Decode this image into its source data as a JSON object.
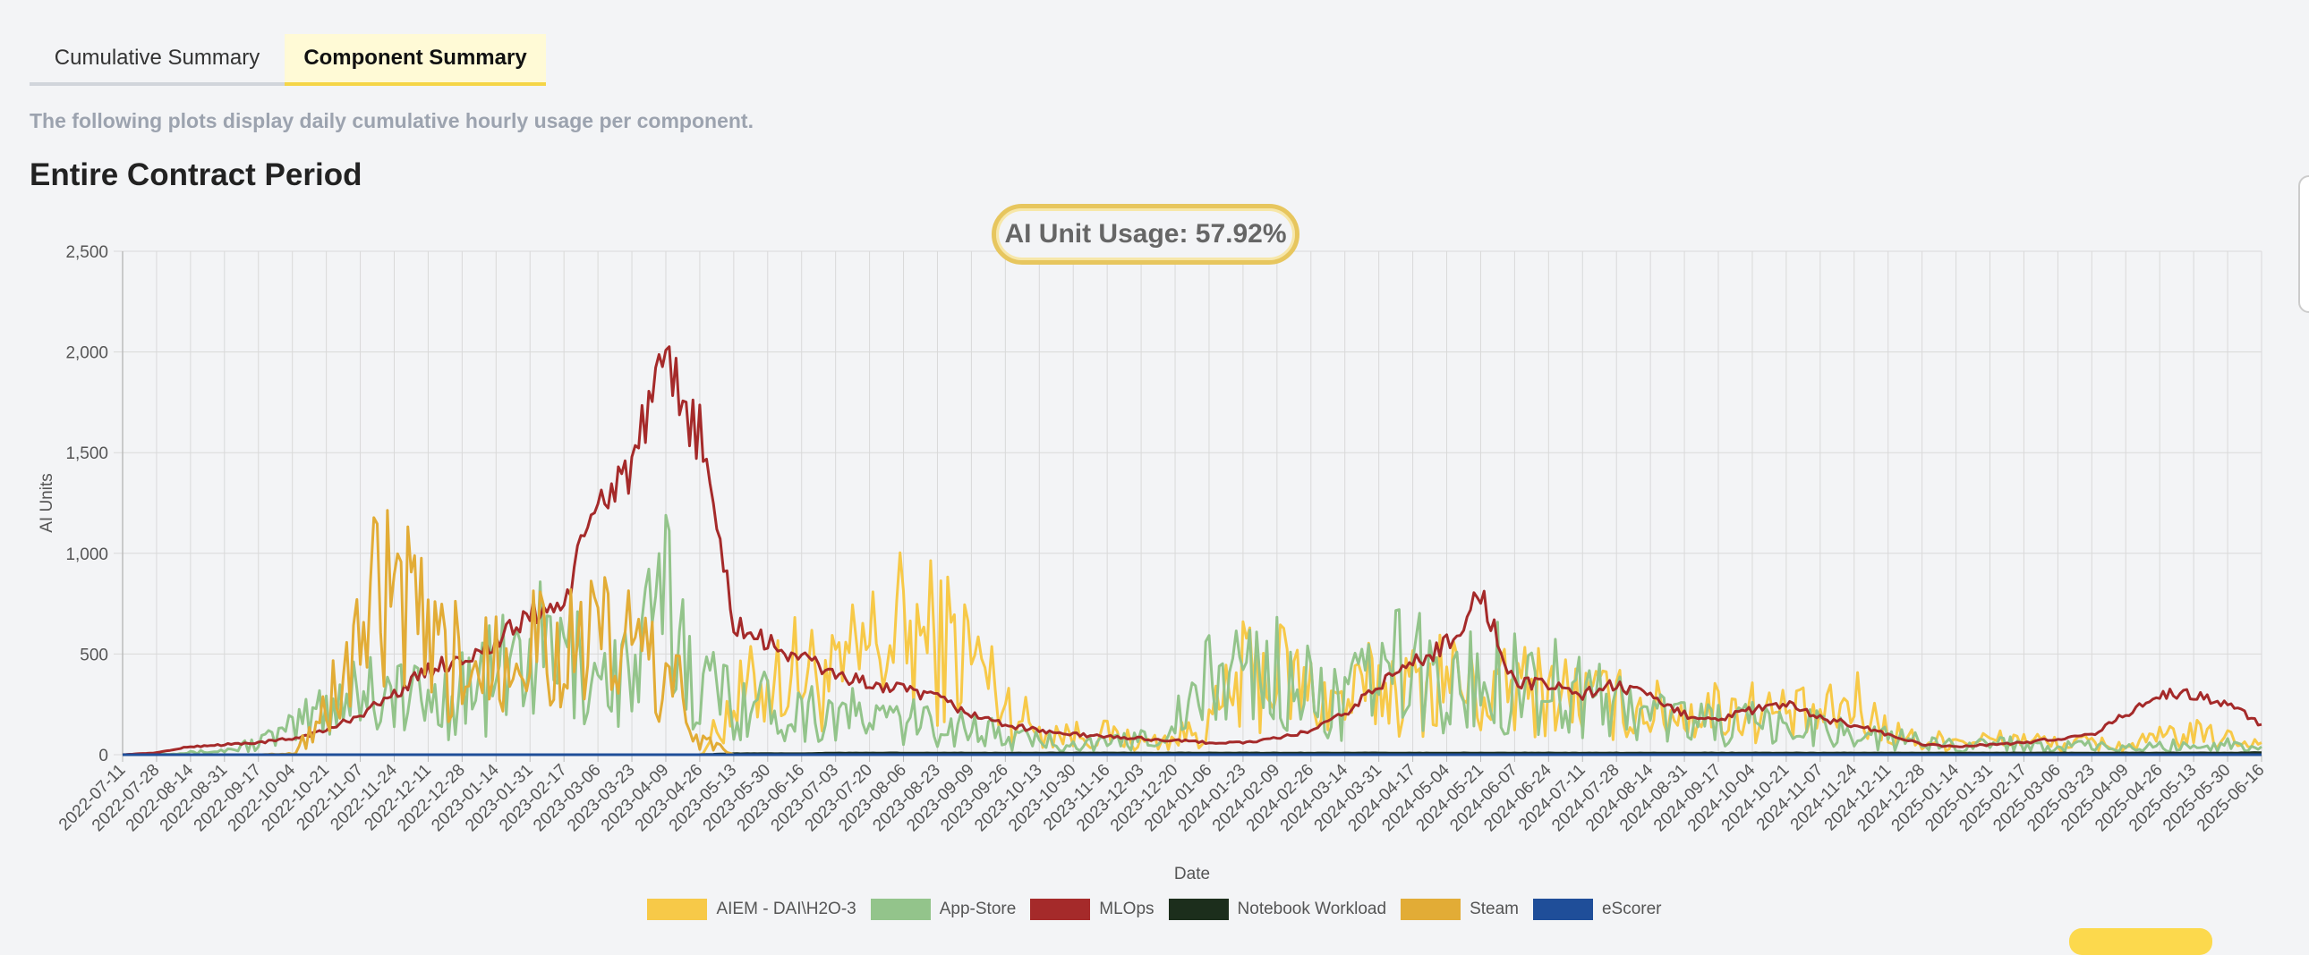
{
  "tabs": [
    {
      "label": "Cumulative Summary",
      "active": false
    },
    {
      "label": "Component Summary",
      "active": true
    }
  ],
  "description": "The following plots display daily cumulative hourly usage per component.",
  "section_title": "Entire Contract Period",
  "usage_badge": "AI Unit Usage: 57.92%",
  "chart_data": {
    "type": "line",
    "xlabel": "Date",
    "ylabel": "AI Units",
    "ylim": [
      0,
      2500
    ],
    "yticks": [
      0,
      500,
      1000,
      1500,
      2000,
      2500
    ],
    "ytick_labels": [
      "0",
      "500",
      "1,000",
      "1,500",
      "2,000",
      "2,500"
    ],
    "x_tick_labels": [
      "2022-07-11",
      "2022-07-28",
      "2022-08-14",
      "2022-08-31",
      "2022-09-17",
      "2022-10-04",
      "2022-10-21",
      "2022-11-07",
      "2022-11-24",
      "2022-12-11",
      "2022-12-28",
      "2023-01-14",
      "2023-01-31",
      "2023-02-17",
      "2023-03-06",
      "2023-03-23",
      "2023-04-09",
      "2023-04-26",
      "2023-05-13",
      "2023-05-30",
      "2023-06-16",
      "2023-07-03",
      "2023-07-20",
      "2023-08-06",
      "2023-08-23",
      "2023-09-09",
      "2023-09-26",
      "2023-10-13",
      "2023-10-30",
      "2023-11-16",
      "2023-12-03",
      "2023-12-20",
      "2024-01-06",
      "2024-01-23",
      "2024-02-09",
      "2024-02-26",
      "2024-03-14",
      "2024-03-31",
      "2024-04-17",
      "2024-05-04",
      "2024-05-21",
      "2024-06-07",
      "2024-06-24",
      "2024-07-11",
      "2024-07-28",
      "2024-08-14",
      "2024-08-31",
      "2024-09-17",
      "2024-10-04",
      "2024-10-21",
      "2024-11-07",
      "2024-11-24",
      "2024-12-11",
      "2024-12-28",
      "2025-01-14",
      "2025-01-31",
      "2025-02-17",
      "2025-03-06",
      "2025-03-23",
      "2025-04-09",
      "2025-04-26",
      "2025-05-13",
      "2025-05-30",
      "2025-06-16"
    ],
    "grid": true,
    "legend_position": "bottom",
    "series": [
      {
        "name": "AIEM - DAI\\H2O-3",
        "color": "#f7c948",
        "values": [
          0,
          0,
          0,
          0,
          0,
          0,
          0,
          0,
          0,
          0,
          0,
          0,
          0,
          0,
          0,
          0,
          0,
          0,
          250,
          380,
          420,
          350,
          520,
          600,
          560,
          500,
          250,
          120,
          100,
          100,
          60,
          80,
          150,
          380,
          420,
          300,
          250,
          350,
          320,
          400,
          280,
          320,
          330,
          280,
          250,
          220,
          200,
          230,
          220,
          200,
          180,
          250,
          120,
          60,
          80,
          70,
          80,
          50,
          60,
          40,
          80,
          100,
          80,
          60
        ]
      },
      {
        "name": "App-Store",
        "color": "#93c48b",
        "values": [
          0,
          5,
          10,
          20,
          60,
          120,
          250,
          350,
          300,
          250,
          320,
          380,
          500,
          480,
          420,
          380,
          750,
          350,
          280,
          250,
          220,
          200,
          180,
          160,
          150,
          140,
          80,
          70,
          60,
          50,
          80,
          150,
          350,
          450,
          400,
          300,
          250,
          400,
          450,
          300,
          380,
          400,
          350,
          300,
          250,
          200,
          180,
          150,
          150,
          120,
          150,
          100,
          80,
          60,
          50,
          60,
          50,
          40,
          40,
          30,
          40,
          50,
          50,
          40
        ]
      },
      {
        "name": "MLOps",
        "color": "#a52a2a",
        "values": [
          0,
          10,
          40,
          50,
          60,
          80,
          120,
          200,
          300,
          420,
          480,
          550,
          700,
          750,
          1250,
          1450,
          1900,
          1600,
          650,
          550,
          480,
          400,
          350,
          320,
          280,
          200,
          150,
          120,
          100,
          90,
          80,
          70,
          60,
          60,
          80,
          120,
          200,
          350,
          450,
          550,
          800,
          350,
          350,
          300,
          350,
          280,
          200,
          180,
          220,
          250,
          180,
          150,
          100,
          50,
          40,
          50,
          60,
          80,
          100,
          200,
          300,
          300,
          250,
          150
        ]
      },
      {
        "name": "Notebook Workload",
        "color": "#1c2e1c",
        "values": [
          0,
          0,
          0,
          0,
          0,
          0,
          0,
          0,
          0,
          0,
          0,
          0,
          0,
          0,
          0,
          0,
          0,
          0,
          5,
          5,
          5,
          8,
          8,
          8,
          8,
          8,
          8,
          8,
          8,
          8,
          8,
          8,
          8,
          8,
          8,
          8,
          8,
          8,
          8,
          8,
          8,
          8,
          8,
          8,
          8,
          8,
          8,
          8,
          8,
          8,
          8,
          8,
          8,
          8,
          8,
          8,
          8,
          8,
          8,
          8,
          8,
          8,
          8,
          10
        ]
      },
      {
        "name": "Steam",
        "color": "#e2ac36",
        "values": [
          0,
          0,
          0,
          0,
          0,
          5,
          200,
          600,
          800,
          500,
          420,
          580,
          620,
          540,
          520,
          520,
          420,
          80,
          0,
          0,
          0,
          0,
          0,
          0,
          0,
          0,
          0,
          0,
          0,
          0,
          0,
          0,
          0,
          0,
          0,
          0,
          0,
          0,
          0,
          0,
          0,
          0,
          0,
          0,
          0,
          0,
          0,
          0,
          0,
          0,
          0,
          0,
          0,
          0,
          0,
          0,
          0,
          0,
          0,
          0,
          0,
          0,
          0,
          0
        ]
      },
      {
        "name": "eScorer",
        "color": "#1f4e99",
        "values": [
          0,
          0,
          0,
          0,
          0,
          0,
          0,
          0,
          0,
          0,
          0,
          0,
          0,
          0,
          0,
          0,
          0,
          0,
          0,
          0,
          0,
          0,
          0,
          0,
          0,
          0,
          0,
          0,
          0,
          0,
          0,
          0,
          0,
          0,
          0,
          0,
          0,
          0,
          0,
          0,
          0,
          0,
          0,
          0,
          0,
          0,
          0,
          0,
          0,
          0,
          0,
          0,
          0,
          0,
          0,
          0,
          0,
          0,
          0,
          0,
          0,
          0,
          0,
          0
        ]
      }
    ]
  }
}
